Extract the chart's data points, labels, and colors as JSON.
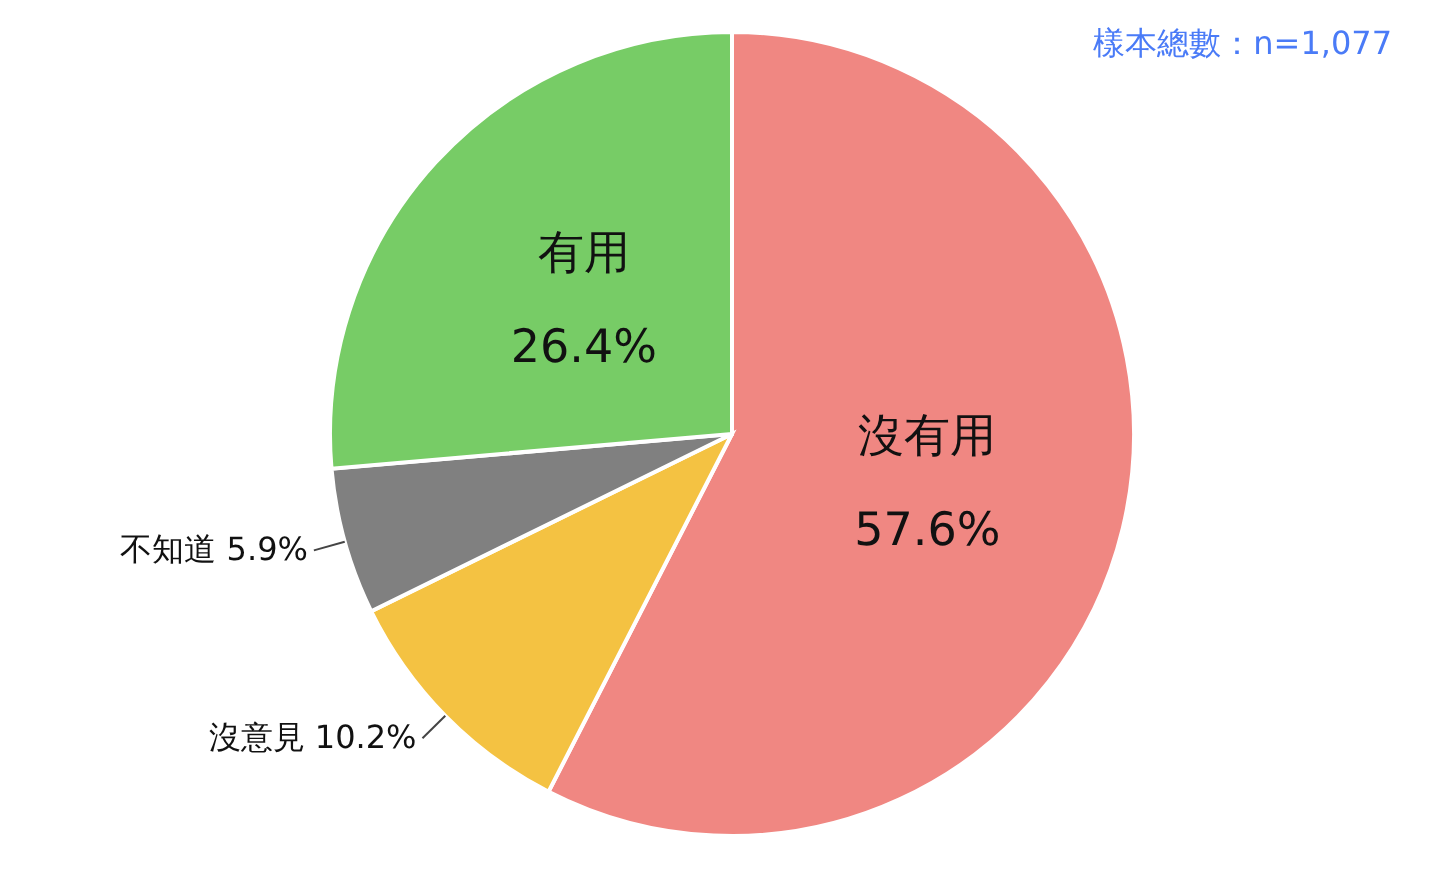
{
  "chart_data": {
    "type": "pie",
    "categories": [
      "沒有用",
      "沒意見",
      "不知道",
      "有用"
    ],
    "values": [
      57.6,
      10.2,
      5.9,
      26.4
    ],
    "colors": [
      "#f08782",
      "#f4c242",
      "#808080",
      "#77cc66"
    ],
    "value_labels": [
      "57.6%",
      "10.2%",
      "5.9%",
      "26.4%"
    ],
    "annotations": [
      "樣本總數：n=1,077"
    ]
  }
}
